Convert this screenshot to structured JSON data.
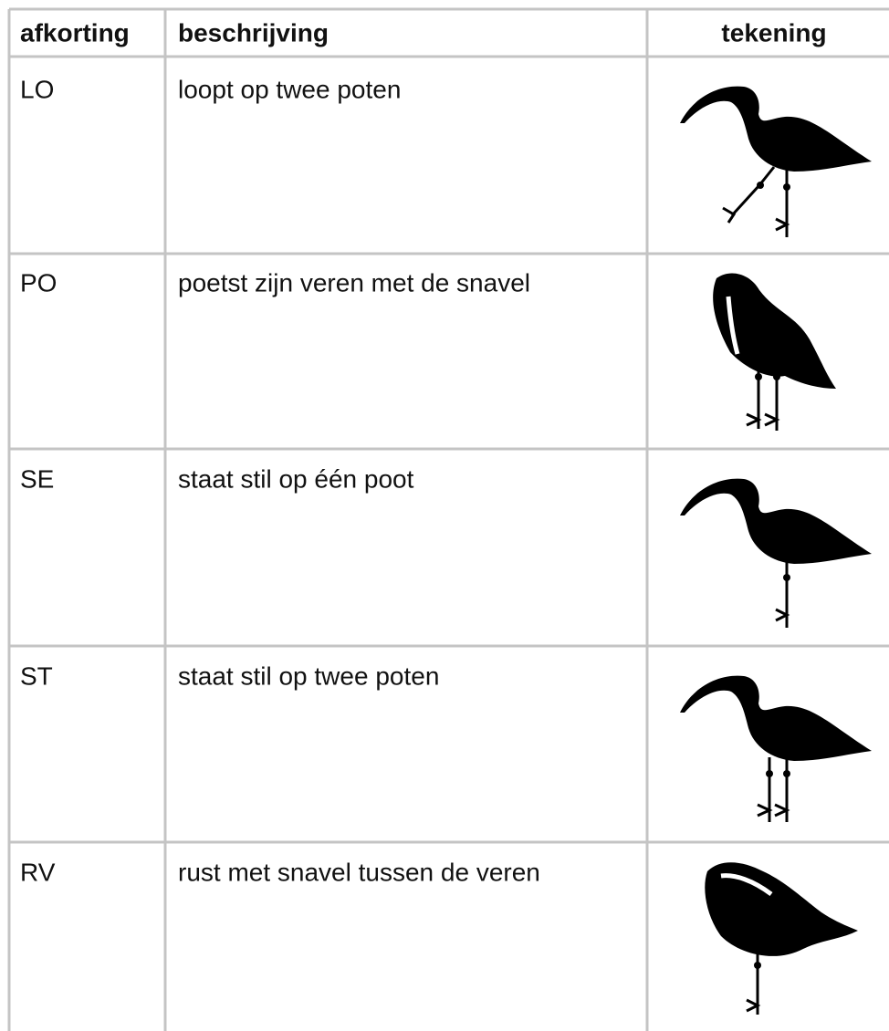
{
  "table": {
    "header": [
      "afkorting",
      "beschrijving",
      "tekening"
    ],
    "rows": [
      [
        "LO",
        "loopt op twee poten"
      ],
      [
        "PO",
        "poetst zijn veren met de snavel"
      ],
      [
        "SE",
        "staat stil op één poot"
      ],
      [
        "ST",
        "staat stil op twee poten"
      ],
      [
        "RV",
        "rust met snavel tussen de veren"
      ]
    ]
  }
}
